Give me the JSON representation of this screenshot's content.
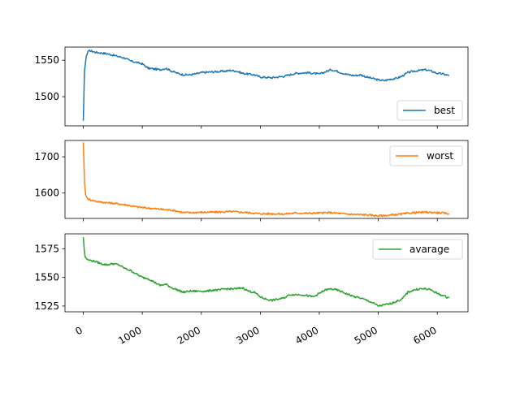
{
  "chart_data": [
    {
      "type": "line",
      "series": [
        {
          "name": "best",
          "color": "#1f77b4",
          "x": [
            0,
            20,
            50,
            80,
            120,
            200,
            300,
            400,
            500,
            600,
            700,
            800,
            900,
            1000,
            1100,
            1200,
            1300,
            1400,
            1500,
            1600,
            1700,
            1800,
            1900,
            2000,
            2200,
            2400,
            2500,
            2600,
            2700,
            2800,
            2900,
            3000,
            3200,
            3400,
            3500,
            3600,
            3800,
            4000,
            4100,
            4200,
            4300,
            4400,
            4500,
            4600,
            4700,
            4800,
            4900,
            5000,
            5100,
            5200,
            5300,
            5400,
            5500,
            5600,
            5700,
            5800,
            5900,
            6000,
            6100,
            6200
          ],
          "y": [
            1467,
            1535,
            1555,
            1562,
            1563,
            1561,
            1560,
            1559,
            1557,
            1555,
            1553,
            1549,
            1547,
            1545,
            1539,
            1538,
            1537,
            1539,
            1535,
            1532,
            1530,
            1530,
            1531,
            1533,
            1534,
            1535,
            1536,
            1535,
            1532,
            1531,
            1530,
            1527,
            1526,
            1528,
            1530,
            1532,
            1533,
            1531,
            1534,
            1537,
            1535,
            1532,
            1530,
            1529,
            1530,
            1527,
            1525,
            1523,
            1522,
            1524,
            1525,
            1528,
            1533,
            1535,
            1536,
            1537,
            1535,
            1532,
            1531,
            1529
          ]
        }
      ],
      "ylim": [
        1460,
        1568
      ],
      "xlim": [
        -310,
        6520
      ],
      "yticks": [
        1500,
        1550
      ],
      "legend": "lower right"
    },
    {
      "type": "line",
      "series": [
        {
          "name": "worst",
          "color": "#ff7f0e",
          "x": [
            0,
            10,
            20,
            40,
            70,
            100,
            150,
            200,
            300,
            500,
            700,
            900,
            1000,
            1200,
            1400,
            1500,
            1600,
            1700,
            1800,
            2000,
            2200,
            2400,
            2500,
            2600,
            2800,
            3000,
            3200,
            3400,
            3600,
            3800,
            4000,
            4200,
            4400,
            4600,
            4800,
            5000,
            5200,
            5400,
            5600,
            5800,
            6000,
            6200
          ],
          "y": [
            1740,
            1690,
            1630,
            1595,
            1585,
            1582,
            1580,
            1578,
            1575,
            1572,
            1568,
            1562,
            1560,
            1557,
            1554,
            1553,
            1550,
            1546,
            1546,
            1547,
            1547,
            1548,
            1549,
            1548,
            1546,
            1543,
            1543,
            1542,
            1545,
            1544,
            1545,
            1546,
            1543,
            1541,
            1540,
            1537,
            1539,
            1542,
            1546,
            1547,
            1546,
            1543
          ]
        }
      ],
      "ylim": [
        1530,
        1745
      ],
      "xlim": [
        -310,
        6520
      ],
      "yticks": [
        1600,
        1700
      ],
      "legend": "upper right"
    },
    {
      "type": "line",
      "series": [
        {
          "name": "avarage",
          "color": "#2ca02c",
          "x": [
            0,
            15,
            30,
            60,
            100,
            200,
            300,
            400,
            500,
            600,
            700,
            800,
            900,
            1000,
            1100,
            1200,
            1300,
            1400,
            1500,
            1600,
            1700,
            1800,
            1900,
            2000,
            2100,
            2200,
            2300,
            2400,
            2500,
            2600,
            2700,
            2800,
            2900,
            3000,
            3100,
            3200,
            3300,
            3400,
            3500,
            3600,
            3700,
            3800,
            3900,
            4000,
            4100,
            4200,
            4300,
            4400,
            4500,
            4600,
            4700,
            4800,
            4900,
            5000,
            5100,
            5200,
            5300,
            5400,
            5500,
            5600,
            5700,
            5800,
            5900,
            6000,
            6100,
            6200
          ],
          "y": [
            1585,
            1575,
            1568,
            1566,
            1565,
            1564,
            1562,
            1561,
            1562,
            1561,
            1558,
            1556,
            1553,
            1550,
            1549,
            1546,
            1543,
            1544,
            1541,
            1539,
            1537,
            1538,
            1538,
            1538,
            1538,
            1539,
            1539,
            1540,
            1540,
            1540,
            1541,
            1538,
            1537,
            1533,
            1531,
            1530,
            1531,
            1532,
            1535,
            1535,
            1535,
            1534,
            1533,
            1536,
            1539,
            1540,
            1539,
            1537,
            1535,
            1533,
            1532,
            1530,
            1528,
            1525,
            1526,
            1527,
            1529,
            1531,
            1537,
            1539,
            1540,
            1540,
            1539,
            1536,
            1534,
            1532
          ]
        }
      ],
      "ylim": [
        1520,
        1588
      ],
      "xlim": [
        -310,
        6520
      ],
      "yticks": [
        1525,
        1550,
        1575
      ],
      "legend": "upper right"
    }
  ],
  "xticks": [
    0,
    1000,
    2000,
    3000,
    4000,
    5000,
    6000
  ],
  "xtick_labels": [
    "0",
    "1000",
    "2000",
    "3000",
    "4000",
    "5000",
    "6000"
  ]
}
